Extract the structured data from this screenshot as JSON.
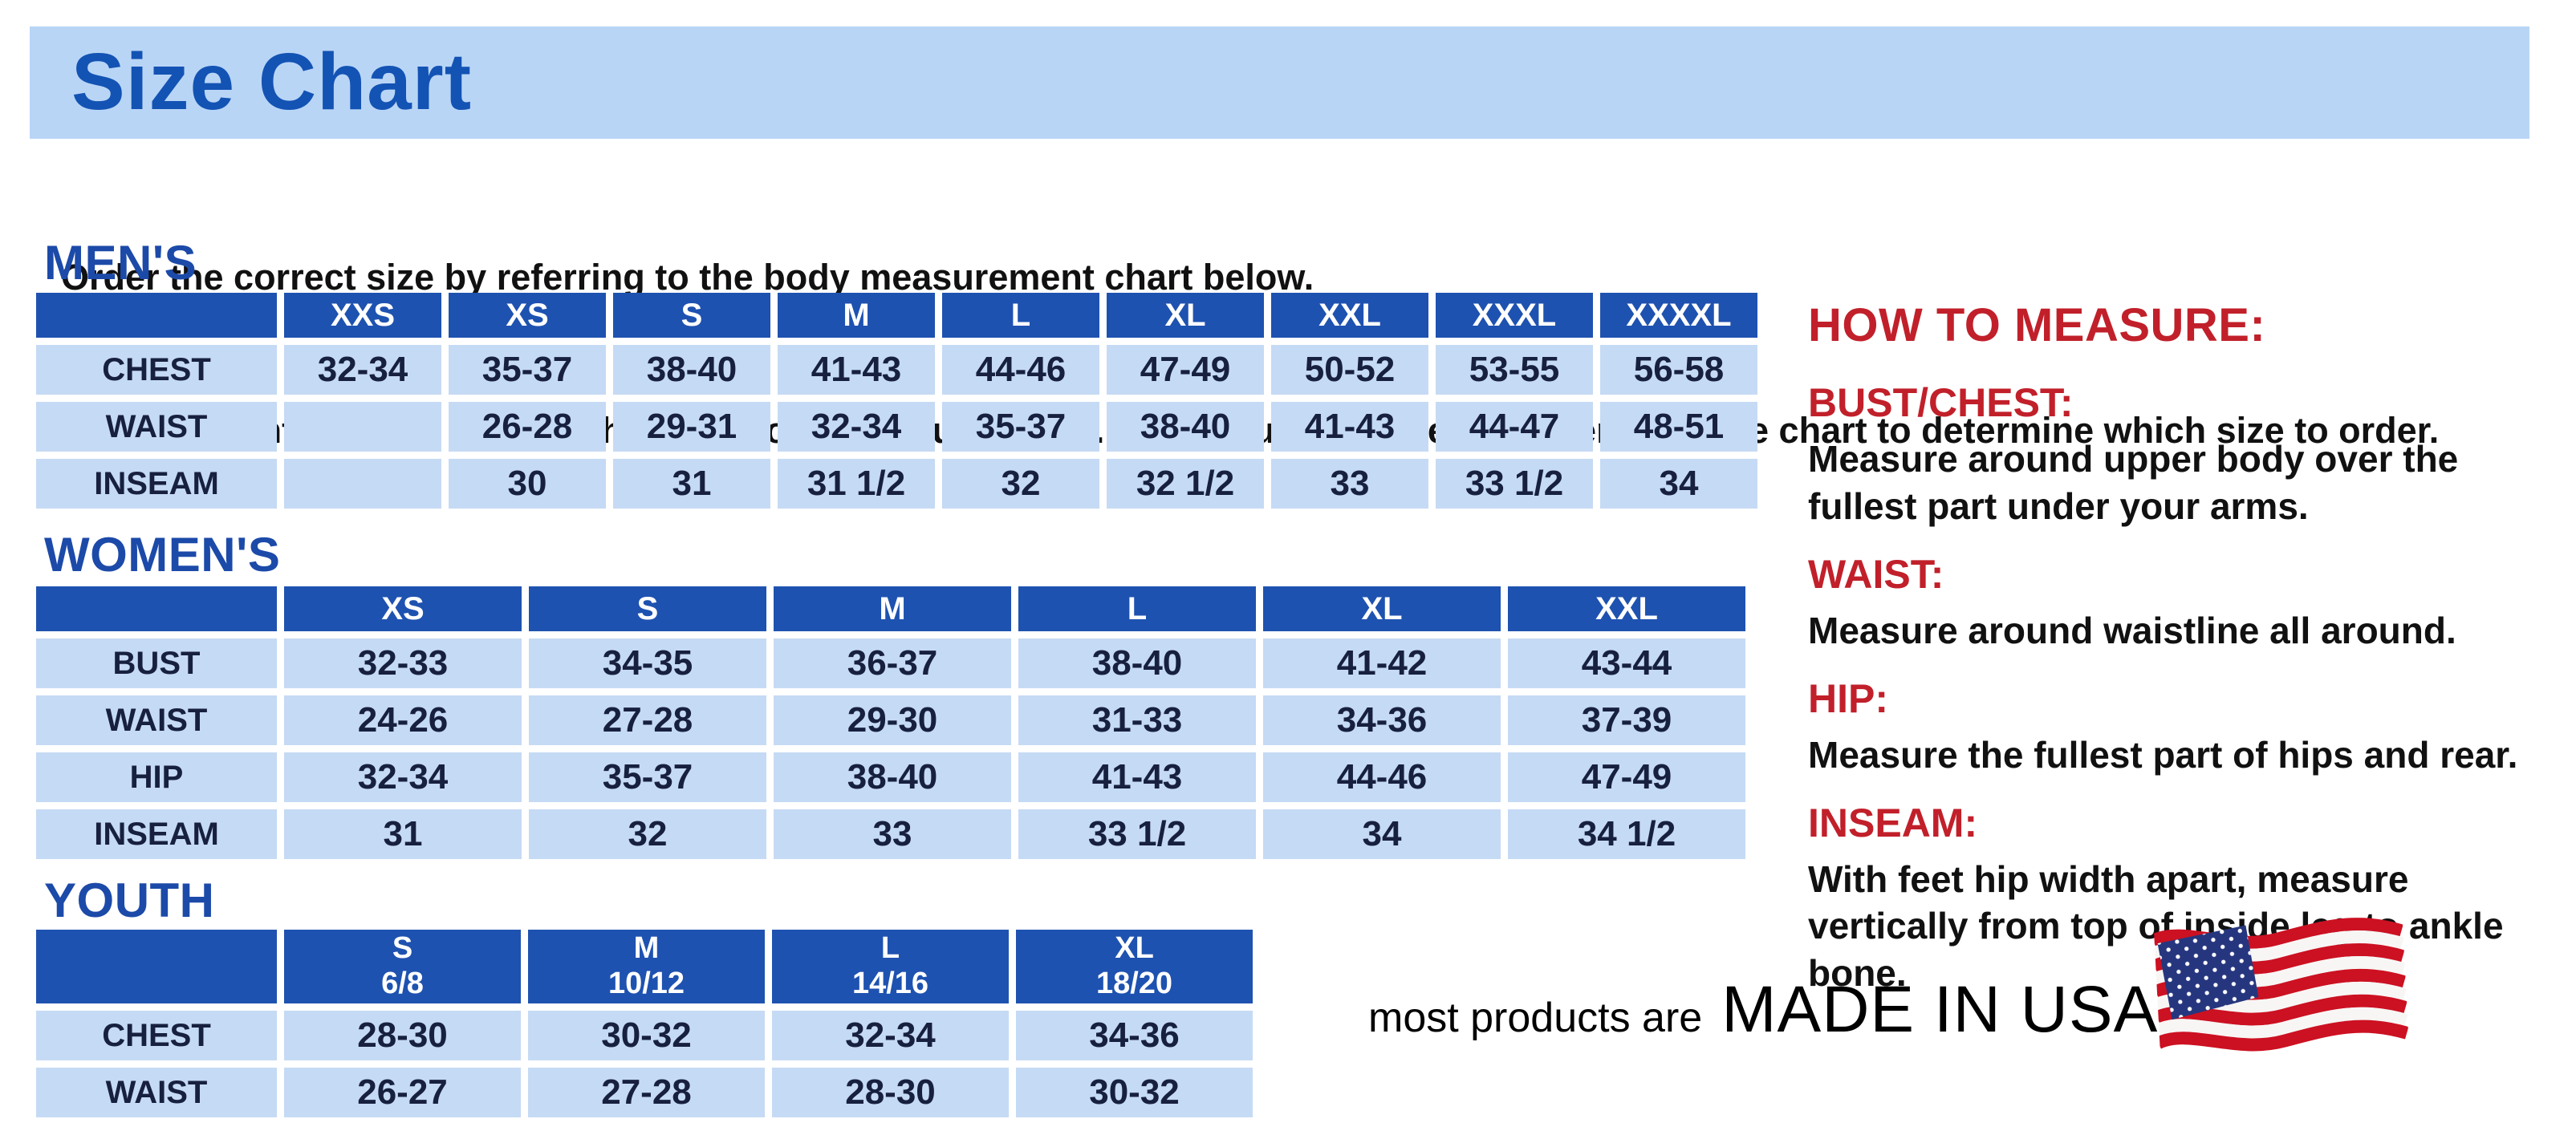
{
  "title": "Size Chart",
  "intro": {
    "line1": "Order the correct size by referring to the body measurement chart below.",
    "line2": "Measurements shown on size chart are body measurements.  Find your body measurements on the chart to determine which size to order."
  },
  "colors": {
    "banner_blue": "#b9d5f6",
    "title_blue": "#1353b4",
    "section_heading_blue": "#1c4aa9",
    "header_blue": "#1e52b0",
    "cell_blue": "#c5daf4",
    "table_text_navy": "#17203f",
    "measure_red": "#c1202a",
    "body_text": "#111111"
  },
  "mens": {
    "heading": "MEN'S",
    "columns": [
      "XXS",
      "XS",
      "S",
      "M",
      "L",
      "XL",
      "XXL",
      "XXXL",
      "XXXXL"
    ],
    "rows": [
      {
        "label": "CHEST",
        "values": [
          "32-34",
          "35-37",
          "38-40",
          "41-43",
          "44-46",
          "47-49",
          "50-52",
          "53-55",
          "56-58"
        ]
      },
      {
        "label": "WAIST",
        "values": [
          "",
          "26-28",
          "29-31",
          "32-34",
          "35-37",
          "38-40",
          "41-43",
          "44-47",
          "48-51"
        ]
      },
      {
        "label": "INSEAM",
        "values": [
          "",
          "30",
          "31",
          "31 1/2",
          "32",
          "32 1/2",
          "33",
          "33 1/2",
          "34"
        ]
      }
    ]
  },
  "womens": {
    "heading": "WOMEN'S",
    "columns": [
      "XS",
      "S",
      "M",
      "L",
      "XL",
      "XXL"
    ],
    "rows": [
      {
        "label": "BUST",
        "values": [
          "32-33",
          "34-35",
          "36-37",
          "38-40",
          "41-42",
          "43-44"
        ]
      },
      {
        "label": "WAIST",
        "values": [
          "24-26",
          "27-28",
          "29-30",
          "31-33",
          "34-36",
          "37-39"
        ]
      },
      {
        "label": "HIP",
        "values": [
          "32-34",
          "35-37",
          "38-40",
          "41-43",
          "44-46",
          "47-49"
        ]
      },
      {
        "label": "INSEAM",
        "values": [
          "31",
          "32",
          "33",
          "33 1/2",
          "34",
          "34 1/2"
        ]
      }
    ]
  },
  "youth": {
    "heading": "YOUTH",
    "columns": [
      "S\n6/8",
      "M\n10/12",
      "L\n14/16",
      "XL\n18/20"
    ],
    "rows": [
      {
        "label": "CHEST",
        "values": [
          "28-30",
          "30-32",
          "32-34",
          "34-36"
        ]
      },
      {
        "label": "WAIST",
        "values": [
          "26-27",
          "27-28",
          "28-30",
          "30-32"
        ]
      }
    ]
  },
  "how_to_measure": {
    "title": "HOW TO MEASURE:",
    "items": [
      {
        "label": "BUST/CHEST:",
        "text": "Measure around upper body over the fullest part under your arms."
      },
      {
        "label": "WAIST:",
        "text": "Measure around waistline all around."
      },
      {
        "label": "HIP:",
        "text": "Measure the fullest part of hips and rear."
      },
      {
        "label": "INSEAM:",
        "text": "With feet hip width apart, measure vertically from top of inside leg to ankle bone."
      }
    ]
  },
  "footer": {
    "prefix": "most products are",
    "emphasis": "MADE IN USA",
    "flag_icon": "us-flag-icon"
  }
}
